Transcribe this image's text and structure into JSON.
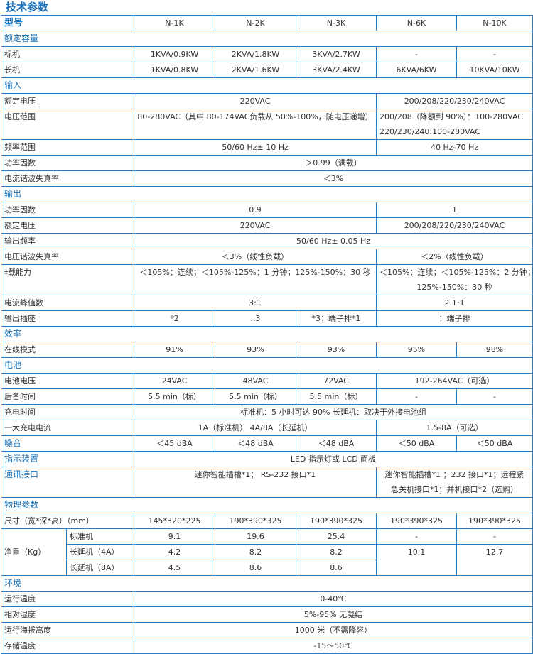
{
  "title": "技术参数",
  "header": {
    "label": "型号",
    "models": [
      "N-1K",
      "N-2K",
      "N-3K",
      "N-6K",
      "N-10K"
    ]
  },
  "rows": [
    {
      "section": "额定容量"
    },
    {
      "label": "标机",
      "cells": [
        {
          "t": [
            "1KVA/0.9KW"
          ]
        },
        {
          "t": [
            "2KVA/1.8KW"
          ]
        },
        {
          "t": [
            "3KVA/2.7KW"
          ]
        },
        {
          "t": [
            "-"
          ]
        },
        {
          "t": [
            "-"
          ]
        }
      ]
    },
    {
      "label": "长机",
      "cells": [
        {
          "t": [
            "1KVA/0.8KW"
          ]
        },
        {
          "t": [
            "2KVA/1.6KW"
          ]
        },
        {
          "t": [
            "3KVA/2.4KW"
          ]
        },
        {
          "t": [
            "6KVA/6KW"
          ]
        },
        {
          "t": [
            "10KVA/10KW"
          ]
        }
      ]
    },
    {
      "section": "输入"
    },
    {
      "label": "额定电压",
      "cells": [
        {
          "t": [
            "220VAC"
          ],
          "span": 3
        },
        {
          "t": [
            "200/208/220/230/240VAC"
          ],
          "span": 2
        }
      ]
    },
    {
      "label": "电压范围",
      "cells": [
        {
          "t": [
            "80-280VAC（其中 80-174VAC负载从 50%-100%，随电压递增）"
          ],
          "span": 3
        },
        {
          "t": [
            "200/208（降额到 90%）：100-280VAC",
            "220/230/240:100-280VAC"
          ],
          "span": 2,
          "left": true
        }
      ]
    },
    {
      "label": "频率范围",
      "cells": [
        {
          "t": [
            "50/60 Hz± 10 Hz"
          ],
          "span": 3
        },
        {
          "t": [
            "40 Hz-70 Hz"
          ],
          "span": 2
        }
      ]
    },
    {
      "label": "功率因数",
      "cells": [
        {
          "t": [
            "＞0.99（满载）"
          ],
          "span": 5
        }
      ]
    },
    {
      "label": "电流谐波失真率",
      "cells": [
        {
          "t": [
            "＜3%"
          ],
          "span": 5
        }
      ]
    },
    {
      "section": "输出"
    },
    {
      "label": "功率因数",
      "cells": [
        {
          "t": [
            "0.9"
          ],
          "span": 3
        },
        {
          "t": [
            "1"
          ],
          "span": 2
        }
      ]
    },
    {
      "label": "额定电压",
      "cells": [
        {
          "t": [
            "220VAC"
          ],
          "span": 3
        },
        {
          "t": [
            "200/208/220/230/240VAC"
          ],
          "span": 2
        }
      ]
    },
    {
      "label": "输出频率",
      "cells": [
        {
          "t": [
            "50/60 Hz± 0.05 Hz"
          ],
          "span": 5
        }
      ]
    },
    {
      "label": "电压谐波失真率",
      "cells": [
        {
          "t": [
            "＜3%（线性负载）"
          ],
          "span": 3
        },
        {
          "t": [
            "＜2%（线性负载）"
          ],
          "span": 2
        }
      ]
    },
    {
      "label": "ǂ载能力",
      "cells": [
        {
          "t": [
            "＜105%：连续；＜105%-125%：1 分钟；125%-150%：30 秒"
          ],
          "span": 3
        },
        {
          "t": [
            "＜105%：连续；＜105%-125%：2 分钟；",
            "125%-150%：30 秒"
          ],
          "span": 2
        }
      ]
    },
    {
      "label": "电流峰值数",
      "cells": [
        {
          "t": [
            "3:1"
          ],
          "span": 3
        },
        {
          "t": [
            "2.1:1"
          ],
          "span": 2
        }
      ]
    },
    {
      "label": "输出插座",
      "cells": [
        {
          "t": [
            "*2"
          ]
        },
        {
          "t": [
            "..3"
          ]
        },
        {
          "t": [
            "*3；端子排*1"
          ]
        },
        {
          "t": [
            "；端子排"
          ],
          "span": 2
        }
      ]
    },
    {
      "section": "效率"
    },
    {
      "label": "在线模式",
      "cells": [
        {
          "t": [
            "91%"
          ]
        },
        {
          "t": [
            "93%"
          ]
        },
        {
          "t": [
            "93%"
          ]
        },
        {
          "t": [
            "95%"
          ]
        },
        {
          "t": [
            "98%"
          ]
        }
      ]
    },
    {
      "section": "电池"
    },
    {
      "label": "电池电压",
      "cells": [
        {
          "t": [
            "24VAC"
          ]
        },
        {
          "t": [
            "48VAC"
          ]
        },
        {
          "t": [
            "72VAC"
          ]
        },
        {
          "t": [
            "192-264VAC（可选）"
          ],
          "span": 2
        }
      ]
    },
    {
      "label": "后备时间",
      "cells": [
        {
          "t": [
            "5.5 min（标）"
          ]
        },
        {
          "t": [
            "5.5 min（标）"
          ]
        },
        {
          "t": [
            "5.5 min（标）"
          ]
        },
        {
          "t": [
            "-"
          ]
        },
        {
          "t": [
            "-"
          ]
        }
      ]
    },
    {
      "label": "充电时间",
      "cells": [
        {
          "t": [
            "标准机：5 小时可达 90%  长延机：取决于外接电池组"
          ],
          "span": 5
        }
      ]
    },
    {
      "label": "一大充电电流",
      "cells": [
        {
          "t": [
            "1A（标准机）  4A/8A（长延机）"
          ],
          "span": 3
        },
        {
          "t": [
            "1.5-8A（可选）"
          ],
          "span": 2
        }
      ]
    },
    {
      "label": "噪音",
      "blue": true,
      "cells": [
        {
          "t": [
            "＜45 dBA"
          ]
        },
        {
          "t": [
            "＜48 dBA"
          ]
        },
        {
          "t": [
            "＜48 dBA"
          ]
        },
        {
          "t": [
            "＜50 dBA"
          ]
        },
        {
          "t": [
            "＜50 dBA"
          ]
        }
      ]
    },
    {
      "label": "指示装置",
      "blue": true,
      "cells": [
        {
          "t": [
            "LED 指示灯或 LCD 面板"
          ],
          "span": 5
        }
      ]
    },
    {
      "label": "通讯接口",
      "blue": true,
      "cells": [
        {
          "t": [
            "迷你智能插槽*1；  RS-232 接口*1"
          ],
          "span": 3
        },
        {
          "t": [
            "迷你智能插槽*1 ；232 接口*1；远程紧",
            "急关机接口*1；并机接口*2（选购）"
          ],
          "span": 2
        }
      ]
    },
    {
      "section": "物理参数"
    },
    {
      "label": "尺寸（宽*深*高）（mm）",
      "cells": [
        {
          "t": [
            "145*320*225"
          ]
        },
        {
          "t": [
            "190*390*325"
          ]
        },
        {
          "t": [
            "190*390*325"
          ]
        },
        {
          "t": [
            "190*390*325"
          ]
        },
        {
          "t": [
            "190*390*325"
          ]
        }
      ]
    },
    {
      "label": "净重（Kg）",
      "labelRowspan": 3,
      "sub": "标准机",
      "cells": [
        {
          "t": [
            "9.1"
          ]
        },
        {
          "t": [
            "19.6"
          ]
        },
        {
          "t": [
            "25.4"
          ]
        },
        {
          "t": [
            "-"
          ]
        },
        {
          "t": [
            "-"
          ]
        }
      ]
    },
    {
      "sub": "长延机（4A）",
      "cells": [
        {
          "t": [
            "4.2"
          ]
        },
        {
          "t": [
            "8.2"
          ]
        },
        {
          "t": [
            "8.2"
          ]
        },
        {
          "t": [
            "10.1"
          ],
          "rowspan": 2
        },
        {
          "t": [
            "12.7"
          ],
          "rowspan": 2
        }
      ]
    },
    {
      "sub": "长延机（8A）",
      "cells": [
        {
          "t": [
            "4.5"
          ]
        },
        {
          "t": [
            "8.6"
          ]
        },
        {
          "t": [
            "8.6"
          ]
        }
      ]
    },
    {
      "section": "环境"
    },
    {
      "label": "运行温度",
      "cells": [
        {
          "t": [
            "0-40℃"
          ],
          "span": 5
        }
      ]
    },
    {
      "label": "相对湿度",
      "cells": [
        {
          "t": [
            "5%-95% 无凝结"
          ],
          "span": 5
        }
      ]
    },
    {
      "label": "运行海拔高度",
      "cells": [
        {
          "t": [
            "1000 米（不需降容）"
          ],
          "span": 5
        }
      ]
    },
    {
      "label": "存储温度",
      "cells": [
        {
          "t": [
            "-15～50℃"
          ],
          "span": 5
        }
      ]
    }
  ],
  "colors": {
    "border": "#2b7cc2",
    "accent": "#1a73b8",
    "text": "#333333"
  }
}
